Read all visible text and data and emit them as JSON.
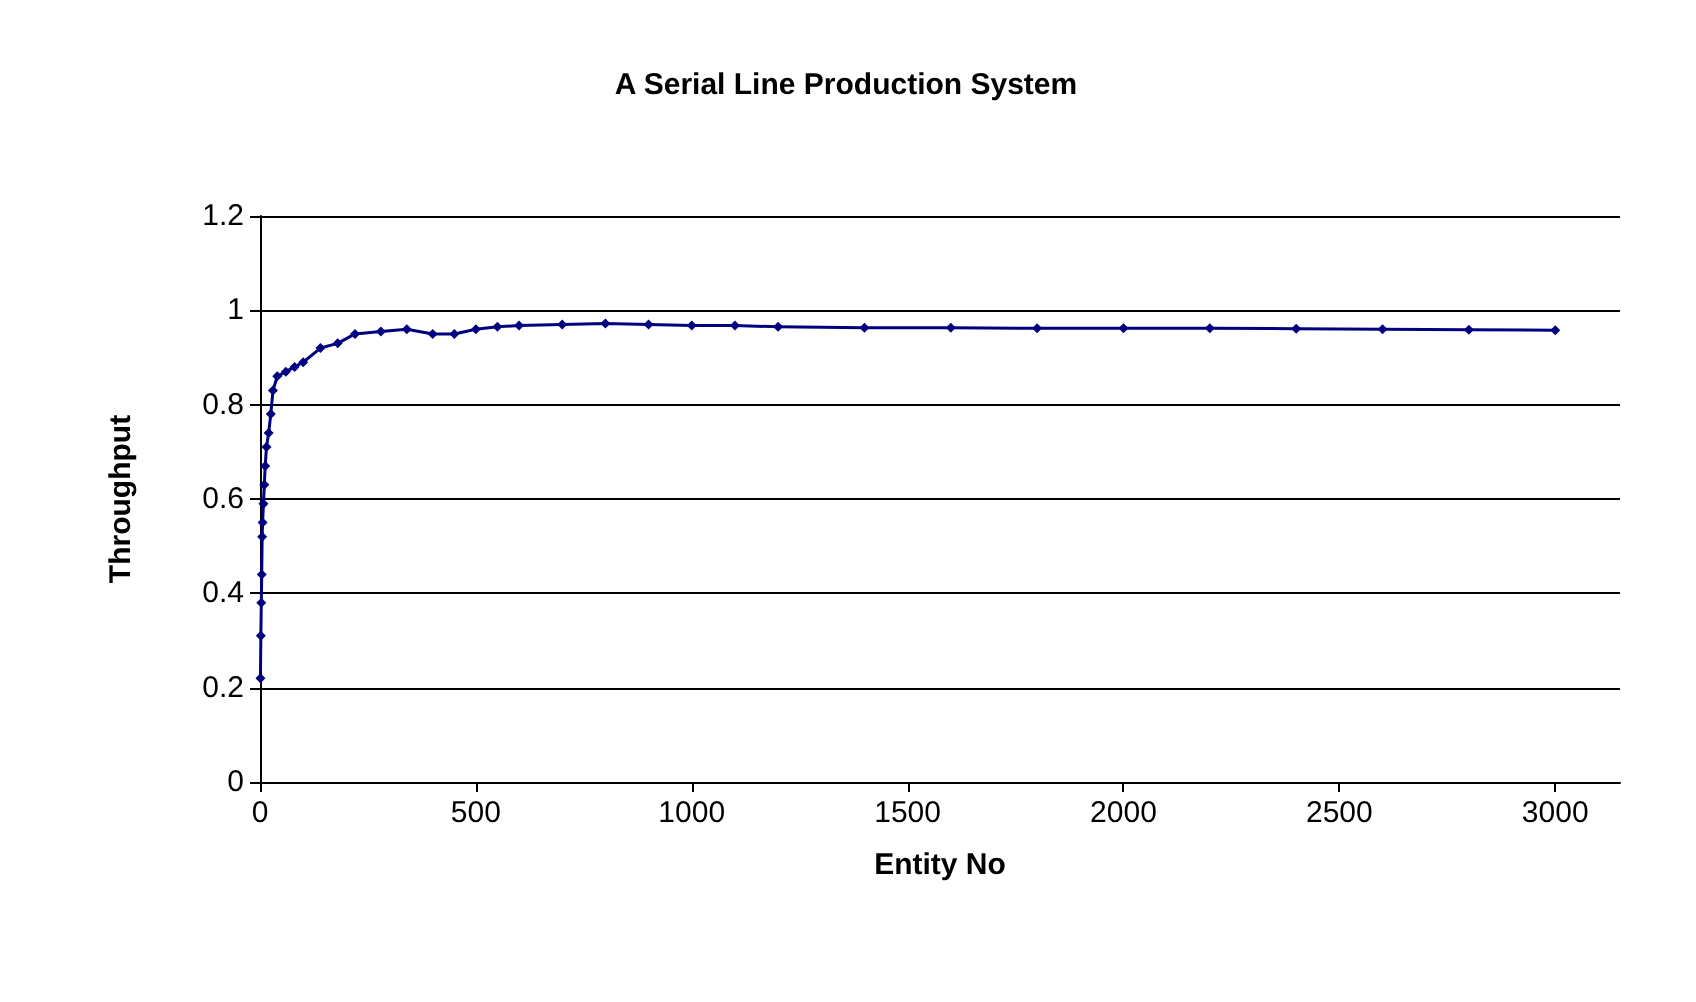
{
  "chart_data": {
    "type": "line",
    "title": "A Serial Line Production System",
    "xlabel": "Entity No",
    "ylabel": "Throughput",
    "x": [
      1,
      2,
      3,
      4,
      5,
      6,
      8,
      10,
      12,
      15,
      20,
      25,
      30,
      40,
      60,
      80,
      100,
      140,
      180,
      220,
      280,
      340,
      400,
      450,
      500,
      550,
      600,
      700,
      800,
      900,
      1000,
      1100,
      1200,
      1400,
      1600,
      1800,
      2000,
      2200,
      2400,
      2600,
      2800,
      3000
    ],
    "series": [
      {
        "color": "#000080",
        "values": [
          0.22,
          0.31,
          0.38,
          0.44,
          0.52,
          0.55,
          0.59,
          0.63,
          0.67,
          0.71,
          0.74,
          0.78,
          0.83,
          0.86,
          0.87,
          0.88,
          0.89,
          0.92,
          0.93,
          0.95,
          0.955,
          0.96,
          0.95,
          0.95,
          0.96,
          0.965,
          0.968,
          0.97,
          0.972,
          0.97,
          0.968,
          0.968,
          0.965,
          0.963,
          0.963,
          0.962,
          0.962,
          0.962,
          0.961,
          0.96,
          0.959,
          0.958
        ]
      }
    ],
    "xlim": [
      0,
      3150
    ],
    "xticks": [
      0,
      500,
      1000,
      1500,
      2000,
      2500,
      3000
    ],
    "ylim": [
      0,
      1.2
    ],
    "yticks": [
      0,
      0.2,
      0.4,
      0.6,
      0.8,
      1,
      1.2
    ],
    "grid": "y",
    "marker": "diamond",
    "line_style": "solid"
  }
}
